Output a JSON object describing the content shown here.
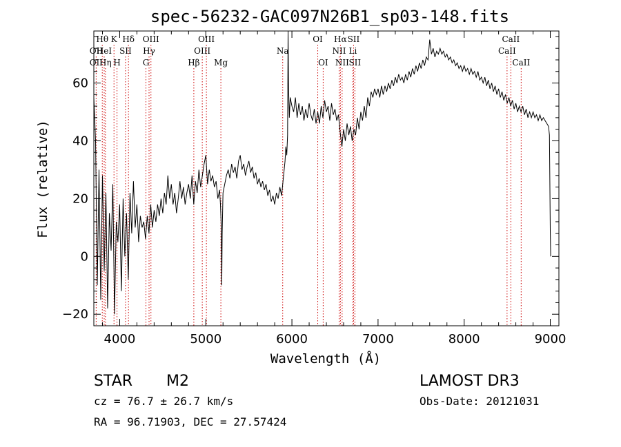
{
  "chart_data": {
    "type": "line",
    "title": "spec-56232-GAC097N26B1_sp03-148.fits",
    "xlabel": "Wavelength (Å)",
    "ylabel": "Flux (relative)",
    "xlim": [
      3700,
      9100
    ],
    "ylim": [
      -24,
      78
    ],
    "xticks": [
      4000,
      5000,
      6000,
      7000,
      8000,
      9000
    ],
    "yticks": [
      -20,
      0,
      20,
      40,
      60
    ],
    "line_color": "#000000",
    "marker_color": "#cc0000",
    "series": [
      {
        "points": [
          [
            3700,
            55
          ],
          [
            3720,
            40
          ],
          [
            3740,
            -10
          ],
          [
            3760,
            30
          ],
          [
            3780,
            -15
          ],
          [
            3800,
            28
          ],
          [
            3820,
            -5
          ],
          [
            3840,
            22
          ],
          [
            3860,
            -18
          ],
          [
            3880,
            15
          ],
          [
            3900,
            2
          ],
          [
            3920,
            25
          ],
          [
            3940,
            -20
          ],
          [
            3960,
            12
          ],
          [
            3980,
            5
          ],
          [
            4000,
            18
          ],
          [
            4020,
            -12
          ],
          [
            4040,
            20
          ],
          [
            4060,
            0
          ],
          [
            4080,
            15
          ],
          [
            4100,
            -8
          ],
          [
            4120,
            22
          ],
          [
            4140,
            8
          ],
          [
            4160,
            26
          ],
          [
            4180,
            10
          ],
          [
            4200,
            18
          ],
          [
            4220,
            5
          ],
          [
            4240,
            14
          ],
          [
            4260,
            10
          ],
          [
            4280,
            12
          ],
          [
            4300,
            6
          ],
          [
            4320,
            14
          ],
          [
            4340,
            8
          ],
          [
            4360,
            18
          ],
          [
            4380,
            10
          ],
          [
            4400,
            16
          ],
          [
            4420,
            12
          ],
          [
            4440,
            18
          ],
          [
            4460,
            14
          ],
          [
            4480,
            20
          ],
          [
            4500,
            15
          ],
          [
            4520,
            22
          ],
          [
            4540,
            18
          ],
          [
            4560,
            28
          ],
          [
            4580,
            20
          ],
          [
            4600,
            25
          ],
          [
            4620,
            18
          ],
          [
            4640,
            22
          ],
          [
            4660,
            15
          ],
          [
            4680,
            20
          ],
          [
            4700,
            26
          ],
          [
            4720,
            20
          ],
          [
            4740,
            24
          ],
          [
            4760,
            18
          ],
          [
            4780,
            22
          ],
          [
            4800,
            25
          ],
          [
            4820,
            20
          ],
          [
            4840,
            28
          ],
          [
            4860,
            18
          ],
          [
            4880,
            26
          ],
          [
            4900,
            22
          ],
          [
            4920,
            30
          ],
          [
            4940,
            24
          ],
          [
            4960,
            28
          ],
          [
            4980,
            32
          ],
          [
            5000,
            35
          ],
          [
            5020,
            25
          ],
          [
            5040,
            30
          ],
          [
            5060,
            26
          ],
          [
            5080,
            28
          ],
          [
            5100,
            24
          ],
          [
            5120,
            26
          ],
          [
            5140,
            20
          ],
          [
            5160,
            23
          ],
          [
            5170,
            18
          ],
          [
            5180,
            10
          ],
          [
            5185,
            -10
          ],
          [
            5190,
            8
          ],
          [
            5200,
            22
          ],
          [
            5220,
            25
          ],
          [
            5240,
            28
          ],
          [
            5260,
            30
          ],
          [
            5280,
            27
          ],
          [
            5300,
            32
          ],
          [
            5320,
            29
          ],
          [
            5340,
            31
          ],
          [
            5360,
            27
          ],
          [
            5380,
            33
          ],
          [
            5400,
            35
          ],
          [
            5420,
            30
          ],
          [
            5440,
            32
          ],
          [
            5460,
            28
          ],
          [
            5480,
            31
          ],
          [
            5500,
            33
          ],
          [
            5520,
            29
          ],
          [
            5540,
            31
          ],
          [
            5560,
            27
          ],
          [
            5580,
            29
          ],
          [
            5600,
            25
          ],
          [
            5620,
            27
          ],
          [
            5640,
            24
          ],
          [
            5660,
            26
          ],
          [
            5680,
            23
          ],
          [
            5700,
            25
          ],
          [
            5720,
            21
          ],
          [
            5740,
            23
          ],
          [
            5760,
            19
          ],
          [
            5780,
            21
          ],
          [
            5800,
            18
          ],
          [
            5820,
            22
          ],
          [
            5840,
            20
          ],
          [
            5860,
            24
          ],
          [
            5880,
            21
          ],
          [
            5900,
            27
          ],
          [
            5920,
            33
          ],
          [
            5930,
            38
          ],
          [
            5940,
            35
          ],
          [
            5950,
            42
          ],
          [
            5955,
            78
          ],
          [
            5960,
            60
          ],
          [
            5970,
            48
          ],
          [
            5980,
            55
          ],
          [
            6000,
            52
          ],
          [
            6020,
            50
          ],
          [
            6040,
            55
          ],
          [
            6060,
            48
          ],
          [
            6080,
            53
          ],
          [
            6100,
            49
          ],
          [
            6120,
            52
          ],
          [
            6140,
            47
          ],
          [
            6160,
            51
          ],
          [
            6180,
            48
          ],
          [
            6200,
            53
          ],
          [
            6220,
            49
          ],
          [
            6240,
            47
          ],
          [
            6260,
            51
          ],
          [
            6280,
            46
          ],
          [
            6300,
            50
          ],
          [
            6320,
            46
          ],
          [
            6340,
            52
          ],
          [
            6360,
            48
          ],
          [
            6380,
            54
          ],
          [
            6400,
            50
          ],
          [
            6420,
            52
          ],
          [
            6440,
            47
          ],
          [
            6460,
            53
          ],
          [
            6480,
            49
          ],
          [
            6500,
            51
          ],
          [
            6520,
            47
          ],
          [
            6540,
            49
          ],
          [
            6560,
            43
          ],
          [
            6580,
            38
          ],
          [
            6600,
            44
          ],
          [
            6620,
            40
          ],
          [
            6640,
            46
          ],
          [
            6660,
            42
          ],
          [
            6680,
            45
          ],
          [
            6700,
            40
          ],
          [
            6720,
            44
          ],
          [
            6740,
            42
          ],
          [
            6760,
            48
          ],
          [
            6780,
            44
          ],
          [
            6800,
            50
          ],
          [
            6820,
            47
          ],
          [
            6840,
            52
          ],
          [
            6860,
            48
          ],
          [
            6880,
            55
          ],
          [
            6900,
            52
          ],
          [
            6920,
            57
          ],
          [
            6940,
            55
          ],
          [
            6960,
            58
          ],
          [
            6980,
            56
          ],
          [
            7000,
            58
          ],
          [
            7020,
            55
          ],
          [
            7040,
            59
          ],
          [
            7060,
            56
          ],
          [
            7080,
            59
          ],
          [
            7100,
            57
          ],
          [
            7120,
            60
          ],
          [
            7140,
            58
          ],
          [
            7160,
            61
          ],
          [
            7180,
            59
          ],
          [
            7200,
            62
          ],
          [
            7220,
            60
          ],
          [
            7240,
            63
          ],
          [
            7260,
            61
          ],
          [
            7280,
            62
          ],
          [
            7300,
            60
          ],
          [
            7320,
            63
          ],
          [
            7340,
            61
          ],
          [
            7360,
            64
          ],
          [
            7380,
            62
          ],
          [
            7400,
            65
          ],
          [
            7420,
            63
          ],
          [
            7440,
            66
          ],
          [
            7460,
            64
          ],
          [
            7480,
            67
          ],
          [
            7500,
            65
          ],
          [
            7520,
            68
          ],
          [
            7540,
            66
          ],
          [
            7560,
            69
          ],
          [
            7580,
            68
          ],
          [
            7600,
            75
          ],
          [
            7620,
            70
          ],
          [
            7640,
            72
          ],
          [
            7660,
            69
          ],
          [
            7680,
            71
          ],
          [
            7700,
            70
          ],
          [
            7720,
            72
          ],
          [
            7740,
            70
          ],
          [
            7760,
            71
          ],
          [
            7780,
            69
          ],
          [
            7800,
            70
          ],
          [
            7820,
            68
          ],
          [
            7840,
            69
          ],
          [
            7860,
            67
          ],
          [
            7880,
            68
          ],
          [
            7900,
            66
          ],
          [
            7920,
            67
          ],
          [
            7940,
            65
          ],
          [
            7960,
            66
          ],
          [
            7980,
            64
          ],
          [
            8000,
            66
          ],
          [
            8020,
            64
          ],
          [
            8040,
            65
          ],
          [
            8060,
            63
          ],
          [
            8080,
            65
          ],
          [
            8100,
            63
          ],
          [
            8120,
            64
          ],
          [
            8140,
            62
          ],
          [
            8160,
            64
          ],
          [
            8180,
            61
          ],
          [
            8200,
            62
          ],
          [
            8220,
            60
          ],
          [
            8240,
            62
          ],
          [
            8260,
            59
          ],
          [
            8280,
            61
          ],
          [
            8300,
            58
          ],
          [
            8320,
            60
          ],
          [
            8340,
            57
          ],
          [
            8360,
            59
          ],
          [
            8380,
            56
          ],
          [
            8400,
            58
          ],
          [
            8420,
            55
          ],
          [
            8440,
            57
          ],
          [
            8460,
            54
          ],
          [
            8480,
            56
          ],
          [
            8500,
            53
          ],
          [
            8520,
            55
          ],
          [
            8540,
            52
          ],
          [
            8560,
            54
          ],
          [
            8580,
            51
          ],
          [
            8600,
            53
          ],
          [
            8620,
            50
          ],
          [
            8640,
            52
          ],
          [
            8660,
            50
          ],
          [
            8680,
            52
          ],
          [
            8700,
            49
          ],
          [
            8720,
            51
          ],
          [
            8740,
            48
          ],
          [
            8760,
            50
          ],
          [
            8780,
            48
          ],
          [
            8800,
            50
          ],
          [
            8820,
            48
          ],
          [
            8840,
            49
          ],
          [
            8860,
            47
          ],
          [
            8880,
            49
          ],
          [
            8900,
            47
          ],
          [
            8920,
            48
          ],
          [
            8940,
            47
          ],
          [
            8960,
            46
          ],
          [
            8980,
            45
          ],
          [
            8990,
            42
          ],
          [
            9000,
            9
          ],
          [
            9005,
            0
          ]
        ]
      }
    ],
    "markers": [
      {
        "label": "Hθ",
        "x": 3798,
        "row": 1
      },
      {
        "label": "OII",
        "x": 3727,
        "row": 2
      },
      {
        "label": "OII",
        "x": 3727,
        "row": 3
      },
      {
        "label": "HeI",
        "x": 3820,
        "row": 2
      },
      {
        "label": "Hη",
        "x": 3835,
        "row": 3
      },
      {
        "label": "K",
        "x": 3934,
        "row": 1
      },
      {
        "label": "SII",
        "x": 4068,
        "row": 2
      },
      {
        "label": "H",
        "x": 3969,
        "row": 3
      },
      {
        "label": "Hδ",
        "x": 4102,
        "row": 1
      },
      {
        "label": "OIII",
        "x": 4363,
        "row": 1
      },
      {
        "label": "Hγ",
        "x": 4341,
        "row": 2
      },
      {
        "label": "G",
        "x": 4305,
        "row": 3
      },
      {
        "label": "OIII",
        "x": 5007,
        "row": 1
      },
      {
        "label": "OIII",
        "x": 4959,
        "row": 2
      },
      {
        "label": "Hβ",
        "x": 4861,
        "row": 3
      },
      {
        "label": "Mg",
        "x": 5175,
        "row": 3
      },
      {
        "label": "Na",
        "x": 5893,
        "row": 2
      },
      {
        "label": "OI",
        "x": 6300,
        "row": 1
      },
      {
        "label": "OI",
        "x": 6363,
        "row": 3
      },
      {
        "label": "Hα",
        "x": 6563,
        "row": 1
      },
      {
        "label": "SII",
        "x": 6716,
        "row": 1
      },
      {
        "label": "NII",
        "x": 6548,
        "row": 2
      },
      {
        "label": "Li",
        "x": 6708,
        "row": 2
      },
      {
        "label": "NII",
        "x": 6583,
        "row": 3
      },
      {
        "label": "SII",
        "x": 6731,
        "row": 3
      },
      {
        "label": "CaII",
        "x": 8542,
        "row": 1
      },
      {
        "label": "CaII",
        "x": 8498,
        "row": 2
      },
      {
        "label": "CaII",
        "x": 8662,
        "row": 3
      }
    ]
  },
  "info": {
    "object_class": "STAR",
    "subclass": "M2",
    "survey": "LAMOST DR3",
    "velocity": "cz = 76.7 ± 26.7 km/s",
    "obs_date": "Obs-Date: 20121031",
    "coords": "RA =  96.71903, DEC =  27.57424"
  }
}
